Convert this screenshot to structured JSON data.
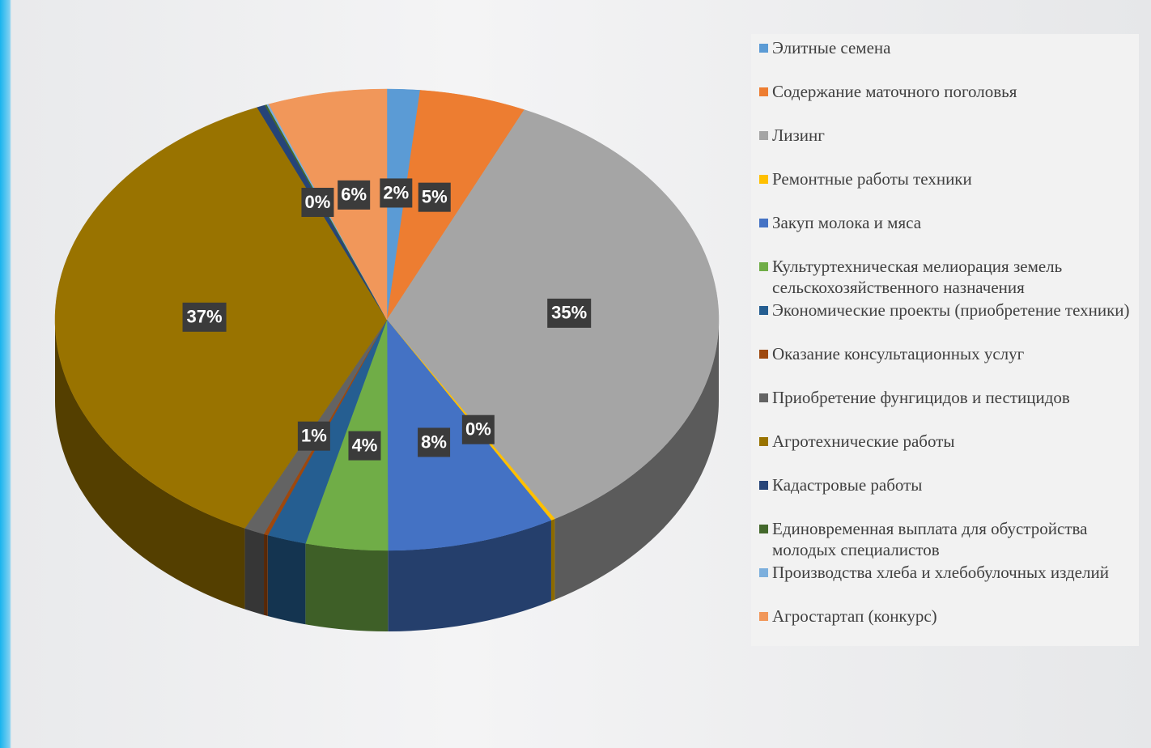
{
  "chart_data": {
    "type": "pie",
    "categories": [
      "Элитные семена",
      "Содержание маточного поголовья",
      "Лизинг",
      "Ремонтные работы техники",
      "Закуп молока и мяса",
      "Культуртехническая мелиорация земель сельскохозяйственного назначения",
      "Экономические проекты (приобретение техники)",
      "Оказание консультационных услуг",
      "Приобретение фунгицидов и пестицидов",
      "Агротехнические работы",
      "Кадастровые работы",
      "Единовременная выплата для обустройства молодых специалистов",
      "Производства хлеба и хлебобулочных изделий",
      "Агростартап (конкурс)"
    ],
    "values": [
      1.6,
      5.2,
      34.8,
      0.2,
      8.2,
      4.0,
      1.9,
      0.2,
      1.0,
      36.6,
      0.4,
      0.1,
      0.1,
      5.8
    ],
    "value_labels": [
      "2%",
      "5%",
      "35%",
      "0%",
      "8%",
      "4%",
      null,
      null,
      "1%",
      "37%",
      "0%",
      null,
      null,
      "6%"
    ],
    "colors": [
      "#5b9bd5",
      "#ed7d31",
      "#a5a5a5",
      "#ffc000",
      "#4472c4",
      "#70ad47",
      "#255e91",
      "#9e480e",
      "#636363",
      "#997300",
      "#264478",
      "#43682b",
      "#7cafdd",
      "#f1975a"
    ],
    "legend": "right"
  }
}
